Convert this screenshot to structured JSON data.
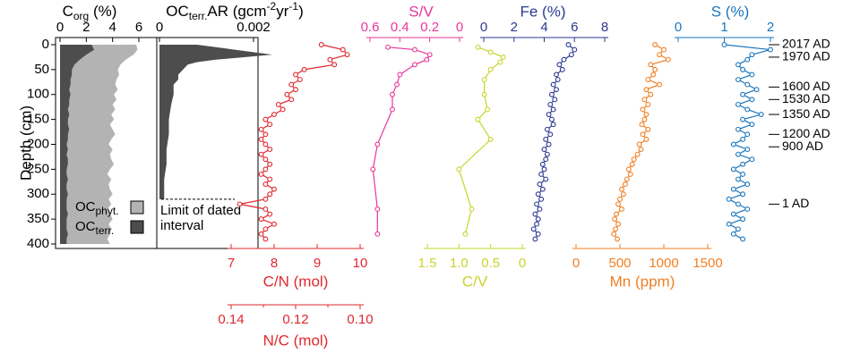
{
  "chart_data": {
    "type": "depth-profile",
    "ylabel": "Depth (cm)",
    "ylim": [
      0,
      400
    ],
    "yticks": [
      0,
      50,
      100,
      150,
      200,
      250,
      300,
      350,
      400
    ],
    "ages": [
      {
        "depth": 0,
        "label": "2017 AD"
      },
      {
        "depth": 25,
        "label": "1970 AD"
      },
      {
        "depth": 85,
        "label": "1600 AD"
      },
      {
        "depth": 110,
        "label": "1530 AD"
      },
      {
        "depth": 140,
        "label": "1350 AD"
      },
      {
        "depth": 180,
        "label": "1200 AD"
      },
      {
        "depth": 205,
        "label": "900 AD"
      },
      {
        "depth": 320,
        "label": "1 AD"
      }
    ],
    "panels": [
      {
        "type": "area",
        "xlabel": [
          {
            "text": "C"
          },
          {
            "text": "org",
            "sub": true
          },
          {
            "text": " (%)"
          }
        ],
        "xlim": [
          0,
          6
        ],
        "xticks": [
          0,
          2,
          4,
          6
        ],
        "color": "#000000",
        "series": [
          {
            "name": [
              {
                "text": "OC"
              },
              {
                "text": "phyt.",
                "sub": true
              }
            ],
            "color": "#b3b3b3",
            "depth": [
              0,
              10,
              20,
              30,
              40,
              50,
              60,
              70,
              80,
              90,
              100,
              110,
              120,
              130,
              140,
              150,
              160,
              170,
              180,
              190,
              200,
              210,
              220,
              230,
              240,
              250,
              260,
              270,
              280,
              290,
              300,
              310,
              320,
              330,
              340,
              350,
              360,
              370,
              380,
              390,
              400
            ],
            "values": [
              5.8,
              5.9,
              5.6,
              5.0,
              4.6,
              4.4,
              4.5,
              4.3,
              4.2,
              4.4,
              4.1,
              4.3,
              4.0,
              4.2,
              3.9,
              4.1,
              3.8,
              4.0,
              4.2,
              3.9,
              3.7,
              4.0,
              3.8,
              3.9,
              4.1,
              3.8,
              3.6,
              3.9,
              3.7,
              3.8,
              4.0,
              3.7,
              3.9,
              3.6,
              3.8,
              4.0,
              3.7,
              3.9,
              3.8,
              3.6,
              3.8
            ]
          },
          {
            "name": [
              {
                "text": "OC"
              },
              {
                "text": "terr.",
                "sub": true
              }
            ],
            "color": "#4d4d4d",
            "depth": [
              0,
              10,
              20,
              30,
              40,
              50,
              60,
              70,
              80,
              90,
              100,
              110,
              120,
              130,
              140,
              150,
              160,
              170,
              180,
              190,
              200,
              210,
              220,
              230,
              240,
              250,
              260,
              270,
              280,
              290,
              300,
              310,
              320,
              330,
              340,
              350,
              360,
              370,
              380,
              390,
              400
            ],
            "values": [
              2.4,
              2.6,
              2.0,
              1.5,
              1.1,
              0.9,
              0.9,
              0.8,
              0.8,
              0.7,
              0.8,
              0.7,
              0.7,
              0.6,
              0.7,
              0.6,
              0.6,
              0.7,
              0.6,
              0.6,
              0.5,
              0.6,
              0.5,
              0.6,
              0.6,
              0.5,
              0.5,
              0.6,
              0.5,
              0.5,
              0.6,
              0.5,
              0.5,
              0.5,
              0.6,
              0.5,
              0.5,
              0.5,
              0.6,
              0.5,
              0.5
            ]
          }
        ]
      },
      {
        "type": "area",
        "xlabel": [
          {
            "text": "OC"
          },
          {
            "text": "terr.",
            "sub": true
          },
          {
            "text": "AR (gcm"
          },
          {
            "text": "-2",
            "sup": true
          },
          {
            "text": "yr"
          },
          {
            "text": "-1",
            "sup": true
          },
          {
            "text": ")"
          }
        ],
        "xlim": [
          0,
          0.002
        ],
        "xticks": [
          0,
          0.002
        ],
        "color": "#000000",
        "annotation": {
          "lines": [
            "Limit of dated",
            "interval"
          ],
          "depth": 310
        },
        "series": [
          {
            "color": "#4d4d4d",
            "depth": [
              0,
              5,
              10,
              15,
              20,
              25,
              30,
              35,
              40,
              50,
              60,
              70,
              80,
              100,
              120,
              150,
              180,
              210,
              240,
              270,
              300,
              310
            ],
            "values": [
              0.0008,
              0.0012,
              0.0016,
              0.002,
              0.0024,
              0.0018,
              0.0012,
              0.0008,
              0.0006,
              0.0005,
              0.0004,
              0.0004,
              0.0003,
              0.0003,
              0.00025,
              0.0002,
              0.0002,
              0.00015,
              0.00015,
              0.0001,
              0.0001,
              0.0001
            ]
          }
        ]
      },
      {
        "type": "line",
        "xlabel": "C/N (mol)",
        "xlim": [
          7,
          10
        ],
        "xticks": [
          7,
          8,
          9,
          10
        ],
        "color": "#e0282e",
        "secondary_axis": {
          "xlabel": "N/C (mol)",
          "xlim": [
            0.14,
            0.1
          ],
          "xticks": [
            0.14,
            0.12,
            {
              "value": 0.1,
              "label": "0.10"
            }
          ],
          "minor_ticks": [
            0.13,
            0.11
          ]
        },
        "series": [
          {
            "color": "#e0282e",
            "depth": [
              0,
              10,
              20,
              30,
              40,
              50,
              60,
              70,
              80,
              90,
              100,
              110,
              120,
              130,
              140,
              150,
              160,
              170,
              180,
              190,
              200,
              210,
              220,
              230,
              240,
              250,
              260,
              270,
              280,
              290,
              300,
              310,
              320,
              330,
              340,
              350,
              360,
              370,
              380,
              390
            ],
            "values": [
              9.1,
              9.6,
              9.7,
              9.3,
              9.4,
              8.7,
              8.5,
              8.6,
              8.4,
              8.5,
              8.3,
              8.4,
              8.1,
              8.2,
              8.0,
              7.8,
              7.9,
              7.7,
              7.8,
              7.7,
              7.8,
              7.9,
              7.7,
              7.8,
              7.9,
              7.8,
              7.7,
              7.9,
              7.8,
              8.0,
              7.9,
              7.8,
              7.2,
              7.8,
              7.9,
              7.7,
              8.0,
              7.8,
              7.7,
              7.8
            ]
          }
        ]
      },
      {
        "type": "line",
        "xlabel": "S/V",
        "xlim": [
          0.6,
          0
        ],
        "xticks": [
          0.6,
          0.4,
          0.2,
          0
        ],
        "color": "#e8369a",
        "series": [
          {
            "color": "#e8369a",
            "depth": [
              5,
              10,
              20,
              30,
              40,
              60,
              80,
              100,
              130,
              200,
              250,
              330,
              380
            ],
            "values": [
              0.48,
              0.3,
              0.2,
              0.22,
              0.3,
              0.4,
              0.42,
              0.45,
              0.45,
              0.55,
              0.58,
              0.55,
              0.55
            ]
          }
        ]
      },
      {
        "type": "line",
        "xlabel": "C/V",
        "xlim": [
          1.5,
          0
        ],
        "xticks": [
          1.5,
          {
            "value": 1,
            "label": "1.0"
          },
          0.5,
          0
        ],
        "color": "#c8d42a",
        "series": [
          {
            "color": "#c8d42a",
            "depth": [
              5,
              15,
              25,
              35,
              50,
              70,
              100,
              130,
              150,
              190,
              250,
              330,
              380
            ],
            "values": [
              0.7,
              0.5,
              0.3,
              0.35,
              0.5,
              0.6,
              0.6,
              0.55,
              0.7,
              0.5,
              1.0,
              0.8,
              0.9
            ]
          }
        ]
      },
      {
        "type": "line",
        "xlabel": "Fe (%)",
        "xlim": [
          0,
          8
        ],
        "xticks": [
          0,
          2,
          4,
          6,
          8
        ],
        "color": "#2b3990",
        "series": [
          {
            "color": "#2b3990",
            "depth": [
              0,
              10,
              20,
              30,
              40,
              50,
              60,
              70,
              80,
              90,
              100,
              110,
              120,
              130,
              140,
              150,
              160,
              170,
              180,
              190,
              200,
              210,
              220,
              230,
              240,
              250,
              260,
              270,
              280,
              290,
              300,
              310,
              320,
              330,
              340,
              350,
              360,
              370,
              380,
              390
            ],
            "values": [
              5.6,
              6.0,
              5.8,
              5.3,
              5.0,
              5.2,
              4.8,
              4.9,
              4.6,
              4.8,
              4.5,
              4.7,
              4.4,
              4.6,
              4.3,
              4.5,
              4.6,
              4.2,
              4.4,
              4.1,
              4.3,
              4.0,
              4.2,
              4.1,
              3.9,
              4.0,
              3.8,
              4.1,
              3.7,
              3.9,
              3.6,
              3.8,
              3.5,
              3.7,
              3.4,
              3.6,
              3.5,
              3.3,
              3.6,
              3.4
            ]
          }
        ]
      },
      {
        "type": "line",
        "xlabel": "Mn (ppm)",
        "xlim": [
          0,
          1500
        ],
        "xticks": [
          0,
          500,
          1000,
          1500
        ],
        "color": "#f07f23",
        "series": [
          {
            "color": "#f07f23",
            "depth": [
              0,
              10,
              20,
              30,
              40,
              50,
              60,
              70,
              80,
              90,
              100,
              110,
              120,
              130,
              140,
              150,
              160,
              170,
              180,
              190,
              200,
              210,
              220,
              230,
              240,
              250,
              260,
              270,
              280,
              290,
              300,
              310,
              320,
              330,
              340,
              350,
              360,
              370,
              380,
              390
            ],
            "values": [
              900,
              1000,
              950,
              1050,
              850,
              900,
              880,
              820,
              950,
              800,
              850,
              780,
              820,
              760,
              800,
              780,
              750,
              820,
              760,
              800,
              720,
              740,
              700,
              660,
              640,
              600,
              620,
              580,
              560,
              520,
              540,
              500,
              480,
              520,
              460,
              440,
              480,
              450,
              430,
              470
            ]
          }
        ]
      },
      {
        "type": "line",
        "xlabel": "S (%)",
        "xlim": [
          0,
          2
        ],
        "xticks": [
          0,
          1,
          2
        ],
        "color": "#1b75bb",
        "series": [
          {
            "color": "#1b75bb",
            "depth": [
              0,
              10,
              20,
              30,
              40,
              50,
              60,
              70,
              80,
              90,
              100,
              110,
              120,
              130,
              140,
              150,
              160,
              170,
              180,
              190,
              200,
              210,
              220,
              230,
              240,
              250,
              260,
              270,
              280,
              290,
              300,
              310,
              320,
              330,
              340,
              350,
              360,
              370,
              380,
              390
            ],
            "values": [
              1.0,
              2.0,
              1.6,
              1.5,
              1.3,
              1.4,
              1.6,
              1.3,
              1.5,
              1.7,
              1.4,
              1.6,
              1.3,
              1.5,
              1.8,
              1.4,
              1.6,
              1.3,
              1.5,
              1.4,
              1.2,
              1.5,
              1.3,
              1.6,
              1.4,
              1.2,
              1.4,
              1.3,
              1.5,
              1.2,
              1.4,
              1.1,
              1.3,
              1.5,
              1.2,
              1.4,
              1.1,
              1.3,
              1.2,
              1.4
            ]
          }
        ]
      }
    ]
  }
}
